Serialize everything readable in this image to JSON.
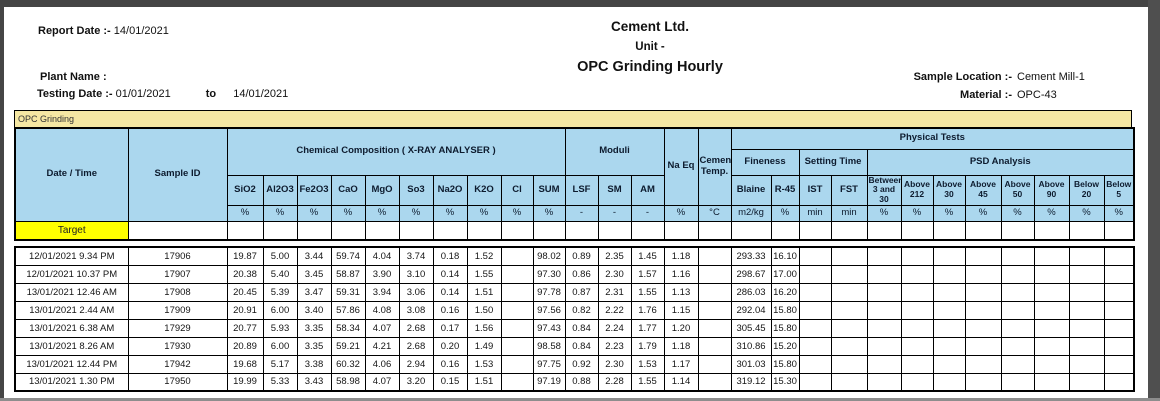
{
  "header": {
    "report_date_label": "Report Date :-",
    "report_date_value": "14/01/2021",
    "plant_name_label": "Plant Name :",
    "testing_date_label": "Testing Date :-",
    "testing_from": "01/01/2021",
    "to_label": "to",
    "testing_to": "14/01/2021",
    "company": "Cement Ltd.",
    "unit_line": "Unit -",
    "report_title": "OPC Grinding Hourly",
    "sample_location_label": "Sample Location :-",
    "sample_location_value": "Cement Mill-1",
    "material_label": "Material :-",
    "material_value": "OPC-43"
  },
  "section_band": "OPC Grinding",
  "colors": {
    "header_blue": "#ABD7EE",
    "band_yellow": "#F5E7A3",
    "target_yellow": "#FFFF00"
  },
  "table": {
    "groups": {
      "date_time": "Date / Time",
      "sample_id": "Sample ID",
      "chemical": "Chemical Composition ( X-RAY ANALYSER )",
      "moduli": "Moduli",
      "na_eq": "Na Eq",
      "cement_temp": "Cement Temp.",
      "physical": "Physical Tests",
      "fineness": "Fineness",
      "setting_time": "Setting Time",
      "psd": "PSD Analysis"
    },
    "chem_cols": [
      "SiO2",
      "Al2O3",
      "Fe2O3",
      "CaO",
      "MgO",
      "So3",
      "Na2O",
      "K2O",
      "Cl",
      "SUM"
    ],
    "moduli_cols": [
      "LSF",
      "SM",
      "AM"
    ],
    "fineness_cols": [
      "Blaine",
      "R-45"
    ],
    "setting_cols": [
      "IST",
      "FST"
    ],
    "psd_cols": [
      "Between 3 and 30",
      "Above 212",
      "Above 30",
      "Above 45",
      "Above 50",
      "Above 90",
      "Below 20",
      "Below 5"
    ],
    "units": [
      "%",
      "%",
      "%",
      "%",
      "%",
      "%",
      "%",
      "%",
      "%",
      "%",
      "-",
      "-",
      "-",
      "%",
      "°C",
      "m2/kg",
      "%",
      "min",
      "min",
      "%",
      "%",
      "%",
      "%",
      "%",
      "%",
      "%",
      "%"
    ],
    "target_label": "Target",
    "rows": [
      [
        "12/01/2021 9.34 PM",
        "17906",
        "19.87",
        "5.00",
        "3.44",
        "59.74",
        "4.04",
        "3.74",
        "0.18",
        "1.52",
        "",
        "98.02",
        "0.89",
        "2.35",
        "1.45",
        "1.18",
        "",
        "293.33",
        "16.10",
        "",
        "",
        "",
        "",
        "",
        "",
        "",
        "",
        "",
        ""
      ],
      [
        "12/01/2021 10.37 PM",
        "17907",
        "20.38",
        "5.40",
        "3.45",
        "58.87",
        "3.90",
        "3.10",
        "0.14",
        "1.55",
        "",
        "97.30",
        "0.86",
        "2.30",
        "1.57",
        "1.16",
        "",
        "298.67",
        "17.00",
        "",
        "",
        "",
        "",
        "",
        "",
        "",
        "",
        "",
        ""
      ],
      [
        "13/01/2021 12.46 AM",
        "17908",
        "20.45",
        "5.39",
        "3.47",
        "59.31",
        "3.94",
        "3.06",
        "0.14",
        "1.51",
        "",
        "97.78",
        "0.87",
        "2.31",
        "1.55",
        "1.13",
        "",
        "286.03",
        "16.20",
        "",
        "",
        "",
        "",
        "",
        "",
        "",
        "",
        "",
        ""
      ],
      [
        "13/01/2021 2.44 AM",
        "17909",
        "20.91",
        "6.00",
        "3.40",
        "57.86",
        "4.08",
        "3.08",
        "0.16",
        "1.50",
        "",
        "97.56",
        "0.82",
        "2.22",
        "1.76",
        "1.15",
        "",
        "292.04",
        "15.80",
        "",
        "",
        "",
        "",
        "",
        "",
        "",
        "",
        "",
        ""
      ],
      [
        "13/01/2021 6.38 AM",
        "17929",
        "20.77",
        "5.93",
        "3.35",
        "58.34",
        "4.07",
        "2.68",
        "0.17",
        "1.56",
        "",
        "97.43",
        "0.84",
        "2.24",
        "1.77",
        "1.20",
        "",
        "305.45",
        "15.80",
        "",
        "",
        "",
        "",
        "",
        "",
        "",
        "",
        "",
        ""
      ],
      [
        "13/01/2021 8.26 AM",
        "17930",
        "20.89",
        "6.00",
        "3.35",
        "59.21",
        "4.21",
        "2.68",
        "0.20",
        "1.49",
        "",
        "98.58",
        "0.84",
        "2.23",
        "1.79",
        "1.18",
        "",
        "310.86",
        "15.20",
        "",
        "",
        "",
        "",
        "",
        "",
        "",
        "",
        "",
        ""
      ],
      [
        "13/01/2021 12.44 PM",
        "17942",
        "19.68",
        "5.17",
        "3.38",
        "60.32",
        "4.06",
        "2.94",
        "0.16",
        "1.53",
        "",
        "97.75",
        "0.92",
        "2.30",
        "1.53",
        "1.17",
        "",
        "301.03",
        "15.80",
        "",
        "",
        "",
        "",
        "",
        "",
        "",
        "",
        "",
        ""
      ],
      [
        "13/01/2021 1.30 PM",
        "17950",
        "19.99",
        "5.33",
        "3.43",
        "58.98",
        "4.07",
        "3.20",
        "0.15",
        "1.51",
        "",
        "97.19",
        "0.88",
        "2.28",
        "1.55",
        "1.14",
        "",
        "319.12",
        "15.30",
        "",
        "",
        "",
        "",
        "",
        "",
        "",
        "",
        "",
        ""
      ]
    ]
  }
}
